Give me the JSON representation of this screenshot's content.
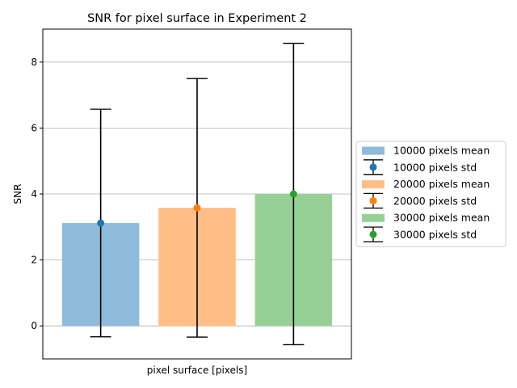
{
  "chart_data": {
    "type": "bar",
    "title": "SNR for pixel surface in Experiment 2",
    "xlabel": "pixel surface [pixels]",
    "ylabel": "SNR",
    "ylim": [
      -1,
      9
    ],
    "yticks": [
      0,
      2,
      4,
      6,
      8
    ],
    "grid": "y",
    "legend_position": "right-outside",
    "series": [
      {
        "mean_label": "10000 pixels mean",
        "std_label": "10000 pixels std",
        "mean": 3.12,
        "std": 3.45,
        "bar_color": "#8fbbda",
        "point_color": "#1f77b4"
      },
      {
        "mean_label": "20000 pixels mean",
        "std_label": "20000 pixels std",
        "mean": 3.58,
        "std": 3.92,
        "bar_color": "#ffbe86",
        "point_color": "#ff7f0e"
      },
      {
        "mean_label": "30000 pixels mean",
        "std_label": "30000 pixels std",
        "mean": 4.0,
        "std": 4.57,
        "bar_color": "#96d096",
        "point_color": "#2ca02c"
      }
    ]
  }
}
